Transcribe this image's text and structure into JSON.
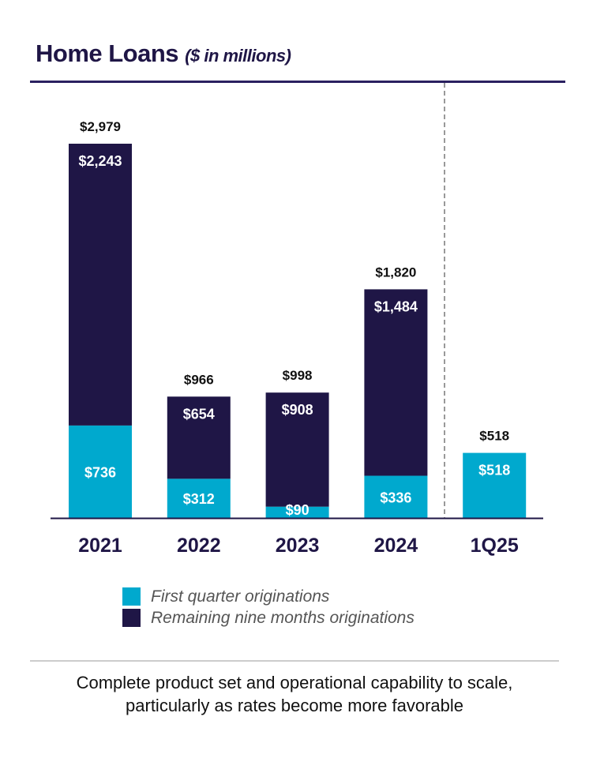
{
  "header": {
    "title": "Home Loans",
    "subtitle": "($ in millions)"
  },
  "colors": {
    "first_quarter": "#00a9ce",
    "remaining": "#1f1646"
  },
  "chart_data": {
    "type": "bar",
    "stacked": true,
    "title": "Home Loans ($ in millions)",
    "categories": [
      "2021",
      "2022",
      "2023",
      "2024",
      "1Q25"
    ],
    "series": [
      {
        "name": "First quarter originations",
        "values": [
          736,
          312,
          90,
          336,
          518
        ],
        "labels": [
          "$736",
          "$312",
          "$90",
          "$336",
          "$518"
        ]
      },
      {
        "name": "Remaining nine months originations",
        "values": [
          2243,
          654,
          908,
          1484,
          null
        ],
        "labels": [
          "$2,243",
          "$654",
          "$908",
          "$1,484",
          null
        ]
      }
    ],
    "totals": [
      2979,
      966,
      998,
      1820,
      518
    ],
    "total_labels": [
      "$2,979",
      "$966",
      "$998",
      "$1,820",
      "$518"
    ],
    "ylim": [
      0,
      3000
    ],
    "grid": false,
    "separator_before": "1Q25"
  },
  "legend": {
    "items": [
      "First quarter originations",
      "Remaining nine months originations"
    ]
  },
  "footer": {
    "text": "Complete product set and operational capability to scale, particularly as rates become more favorable"
  }
}
